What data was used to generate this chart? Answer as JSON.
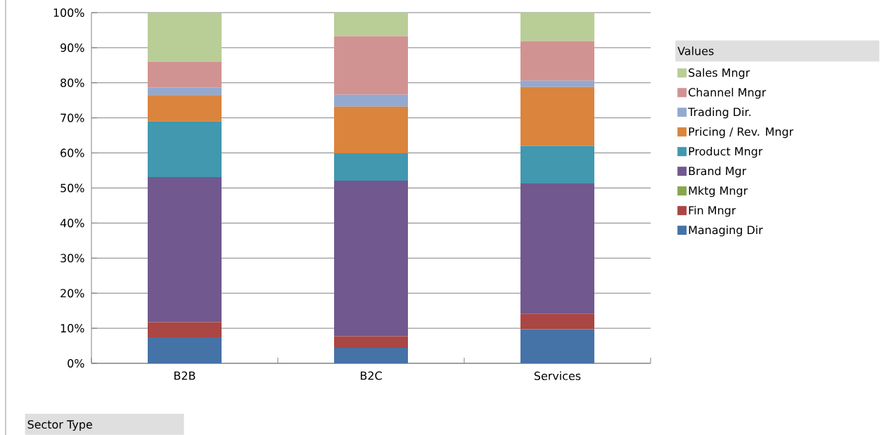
{
  "chart_data": {
    "type": "bar",
    "stacked": true,
    "xlabel": "Sector Type",
    "legend_title": "Values",
    "categories": [
      "B2B",
      "B2C",
      "Services"
    ],
    "series": [
      {
        "name": "Managing Dir",
        "color": "#4572a7",
        "values": [
          7.4,
          4.4,
          9.7
        ]
      },
      {
        "name": "Fin  Mngr",
        "color": "#aa4643",
        "values": [
          4.3,
          3.3,
          4.4
        ]
      },
      {
        "name": "Mktg Mngr",
        "color": "#89a54e",
        "values": [
          0,
          0,
          0
        ]
      },
      {
        "name": "Brand Mgr",
        "color": "#71588f",
        "values": [
          41.4,
          44.4,
          37.2
        ]
      },
      {
        "name": "Product Mngr",
        "color": "#4198af",
        "values": [
          15.9,
          7.8,
          10.7
        ]
      },
      {
        "name": "Pricing / Rev. Mngr",
        "color": "#db843d",
        "values": [
          7.5,
          13.3,
          16.8
        ]
      },
      {
        "name": "Trading Dir.",
        "color": "#93a9cf",
        "values": [
          2.2,
          3.4,
          1.8
        ]
      },
      {
        "name": "Channel Mngr",
        "color": "#d19392",
        "values": [
          7.3,
          16.7,
          11.3
        ]
      },
      {
        "name": "Sales Mngr",
        "color": "#b9cd96",
        "values": [
          14.0,
          6.7,
          8.1
        ]
      }
    ],
    "ylim": [
      0,
      100
    ],
    "yticks": [
      {
        "value": 0,
        "label": "0%"
      },
      {
        "value": 10,
        "label": "10%"
      },
      {
        "value": 20,
        "label": "20%"
      },
      {
        "value": 30,
        "label": "30%"
      },
      {
        "value": 40,
        "label": "40%"
      },
      {
        "value": 50,
        "label": "50%"
      },
      {
        "value": 60,
        "label": "60%"
      },
      {
        "value": 70,
        "label": "70%"
      },
      {
        "value": 80,
        "label": "80%"
      },
      {
        "value": 90,
        "label": "90%"
      },
      {
        "value": 100,
        "label": "100%"
      }
    ],
    "grid": "y",
    "legend": "right"
  }
}
